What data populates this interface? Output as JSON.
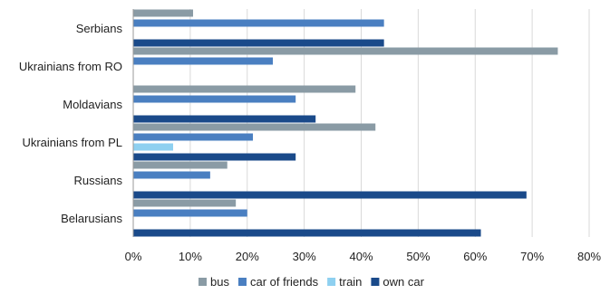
{
  "chart_data": {
    "type": "bar",
    "orientation": "horizontal",
    "categories": [
      "Serbians",
      "Ukrainians from RO",
      "Moldavians",
      "Ukrainians from PL",
      "Russians",
      "Belarusians"
    ],
    "series": [
      {
        "name": "bus",
        "color": "#8a9ba5",
        "values": [
          10.5,
          74.5,
          39,
          42.5,
          16.5,
          18
        ]
      },
      {
        "name": "car of friends",
        "color": "#4a7fc1",
        "values": [
          44,
          24.5,
          28.5,
          21,
          13.5,
          20
        ]
      },
      {
        "name": "train",
        "color": "#8ed0f0",
        "values": [
          0,
          0,
          0,
          7,
          0,
          0
        ]
      },
      {
        "name": "own car",
        "color": "#1a4a8a",
        "values": [
          44,
          0,
          32,
          28.5,
          69,
          61
        ]
      }
    ],
    "xlim": [
      0,
      80
    ],
    "xticks": [
      "0%",
      "10%",
      "20%",
      "30%",
      "40%",
      "50%",
      "60%",
      "70%",
      "80%"
    ],
    "grid": true,
    "legend_position": "bottom"
  }
}
